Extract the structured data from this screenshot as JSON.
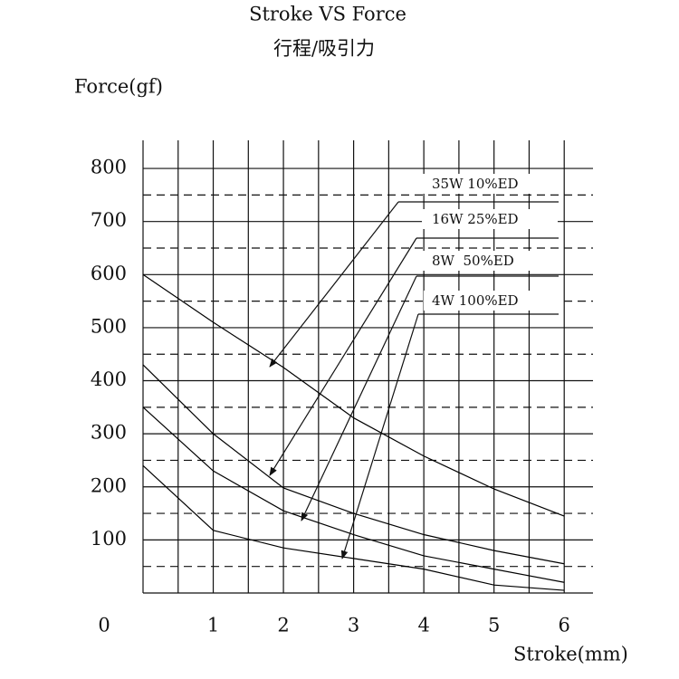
{
  "chart_data": {
    "type": "line",
    "title": "Stroke VS  Force",
    "subtitle": "行程/吸引力",
    "y_label": "Force(gf)",
    "x_label": "Stroke(mm)",
    "x": [
      0,
      1,
      2,
      3,
      4,
      5,
      6
    ],
    "series": [
      {
        "name": "35W 10%ED",
        "color": "#000000",
        "values": [
          600,
          510,
          425,
          330,
          258,
          196,
          145
        ]
      },
      {
        "name": "16W 25%ED",
        "color": "#000000",
        "values": [
          430,
          300,
          198,
          150,
          110,
          80,
          55
        ]
      },
      {
        "name": "8W  50%ED",
        "color": "#000000",
        "values": [
          350,
          230,
          155,
          110,
          70,
          45,
          20
        ]
      },
      {
        "name": "4W 100%ED",
        "color": "#000000",
        "values": [
          240,
          118,
          85,
          65,
          45,
          15,
          5
        ]
      }
    ],
    "xlim": [
      0,
      6.41
    ],
    "ylim": [
      0,
      853
    ],
    "xticks": [
      0,
      1,
      2,
      3,
      4,
      5,
      6
    ],
    "yticks": [
      100,
      200,
      300,
      400,
      500,
      600,
      700,
      800
    ],
    "x_grid": [
      0,
      0.5,
      1,
      1.5,
      2,
      2.5,
      3,
      3.5,
      4,
      4.5,
      5,
      5.5,
      6
    ],
    "y_minor_grid": [
      50,
      150,
      250,
      350,
      450,
      550,
      650,
      750
    ],
    "grid": true
  }
}
